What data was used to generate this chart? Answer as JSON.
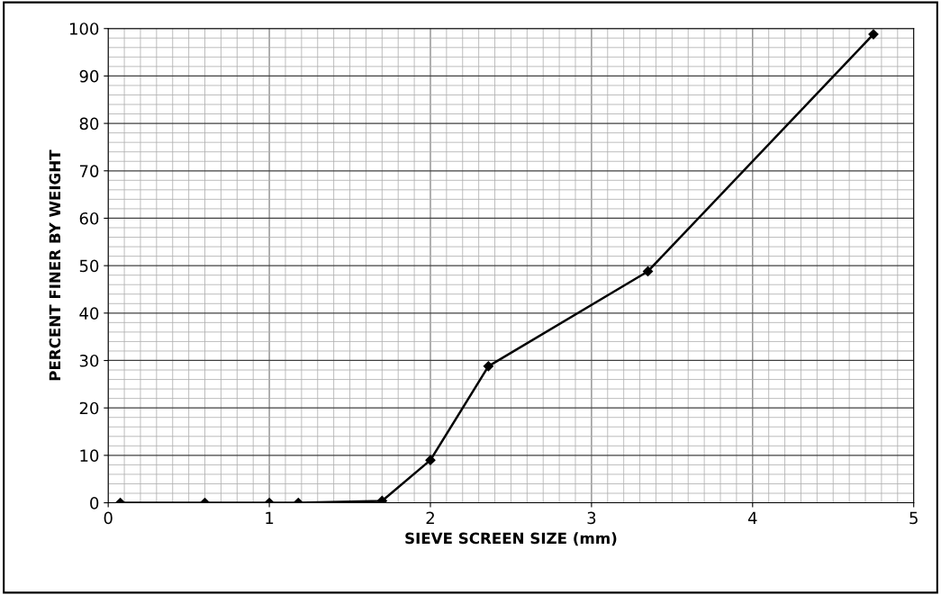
{
  "chart_data": {
    "type": "line",
    "xlabel": "SIEVE SCREEN SIZE (mm)",
    "ylabel": "PERCENT FINER BY WEIGHT",
    "x": [
      0.075,
      0.6,
      1.0,
      1.18,
      1.7,
      2.0,
      2.36,
      3.35,
      4.75
    ],
    "series": [
      {
        "color": "#000000",
        "values": [
          0,
          0,
          0,
          0,
          0.4,
          9,
          28.8,
          48.8,
          98.8
        ]
      }
    ],
    "xlim": [
      0,
      5
    ],
    "xticks": [
      0,
      1,
      2,
      3,
      4,
      5
    ],
    "ylim": [
      0,
      100
    ],
    "yticks": [
      0,
      10,
      20,
      30,
      40,
      50,
      60,
      70,
      80,
      90,
      100
    ],
    "grid": true,
    "marker": "diamond",
    "line_style": "solid"
  }
}
